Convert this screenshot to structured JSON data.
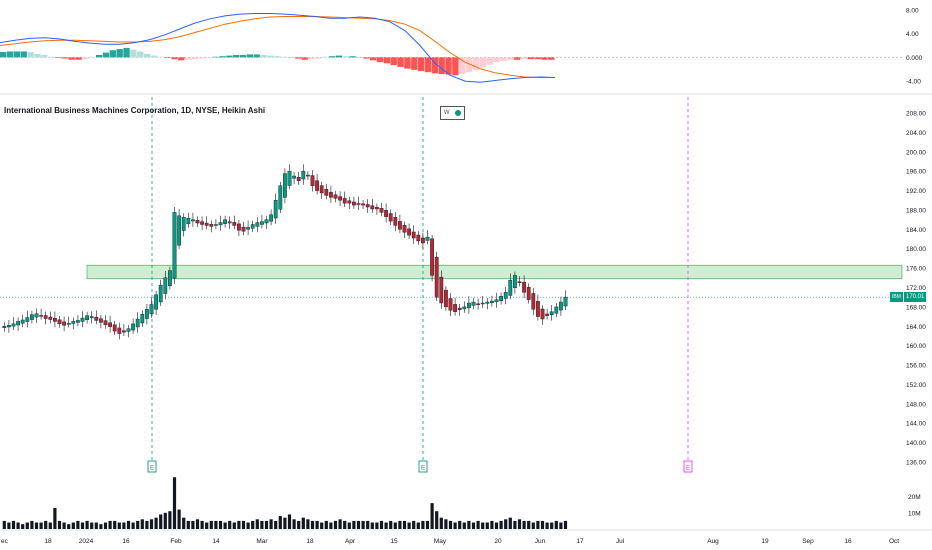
{
  "title": "International Business Machines Corporation, 1D, NYSE, Heikin Ashi",
  "badge": {
    "w": "W"
  },
  "price_tag": {
    "symbol": "IBM",
    "value": "170.01"
  },
  "colors": {
    "up": "#089981",
    "down": "#b22833",
    "zone": "#6fcf7f",
    "earn_past": "#089981",
    "earn_future": "#e040fb",
    "macd": "#2962ff",
    "signal": "#ff6d00"
  },
  "chart_data": [
    {
      "type": "heikin-ashi",
      "title": "International Business Machines Corporation, 1D, NYSE, Heikin Ashi",
      "ylim": [
        136,
        208
      ],
      "y_ticks": [
        "208.00",
        "204.00",
        "200.00",
        "196.00",
        "192.00",
        "188.00",
        "184.00",
        "180.00",
        "176.00",
        "172.00",
        "168.00",
        "164.00",
        "160.00",
        "156.00",
        "152.00",
        "148.00",
        "144.00",
        "140.00",
        "136.00"
      ],
      "x_ticks": [
        "ec",
        "18",
        "2024",
        "16",
        "Feb",
        "14",
        "Mar",
        "18",
        "Apr",
        "15",
        "May",
        "20",
        "Jun",
        "17",
        "Jul",
        "Aug",
        "19",
        "Sep",
        "16",
        "Oct"
      ],
      "last_price": 170.01,
      "price_line": 170.0,
      "zone": {
        "from": 173.8,
        "to": 176.6
      },
      "earnings_markers": [
        {
          "label": "E",
          "date": "2024-01-24",
          "status": "past"
        },
        {
          "label": "E",
          "date": "2024-04-24",
          "status": "past"
        },
        {
          "label": "E",
          "date": "2024-07-24",
          "status": "upcoming"
        }
      ],
      "closes": [
        164.0,
        164.2,
        164.5,
        165.0,
        165.3,
        165.8,
        166.4,
        166.6,
        166.2,
        165.6,
        165.4,
        165.0,
        164.5,
        164.2,
        164.6,
        165.0,
        165.2,
        165.7,
        166.2,
        166.0,
        165.2,
        164.8,
        164.3,
        163.9,
        163.0,
        162.5,
        162.8,
        163.5,
        164.5,
        165.5,
        166.5,
        167.5,
        168.5,
        170.5,
        172.5,
        174.0,
        175.5,
        187.5,
        186.8,
        186.5,
        186.3,
        186.0,
        185.3,
        185.0,
        184.8,
        184.6,
        185.0,
        185.4,
        186.0,
        185.3,
        184.8,
        183.8,
        183.6,
        184.4,
        185.0,
        185.4,
        185.6,
        186.0,
        187.0,
        190.0,
        193.0,
        195.5,
        196.0,
        195.0,
        194.0,
        196.0,
        195.0,
        193.0,
        192.0,
        191.5,
        191.0,
        190.6,
        190.4,
        190.0,
        189.4,
        189.4,
        189.0,
        189.2,
        189.0,
        188.6,
        188.2,
        188.2,
        187.5,
        186.6,
        185.7,
        184.8,
        184.0,
        183.4,
        182.8,
        182.2,
        181.6,
        181.2,
        182.4,
        174.5,
        170.0,
        168.8,
        168.0,
        167.3,
        167.0,
        167.4,
        168.0,
        168.8,
        169.0,
        168.6,
        168.8,
        169.0,
        169.2,
        169.5,
        170.2,
        171.0,
        173.5,
        174.5,
        173.0,
        171.0,
        169.5,
        167.5,
        166.0,
        165.5,
        166.2,
        167.0,
        168.0,
        169.0,
        170.01
      ],
      "volume_ticks": [
        "20M",
        "10M"
      ],
      "volume_millions": [
        5,
        4,
        5,
        4,
        3,
        4,
        5,
        4,
        4,
        5,
        4,
        13,
        5,
        4,
        3,
        4,
        5,
        4,
        5,
        4,
        4,
        3,
        4,
        5,
        5,
        4,
        4,
        5,
        4,
        5,
        6,
        5,
        6,
        7,
        9,
        10,
        11,
        32,
        12,
        7,
        5,
        5,
        6,
        5,
        4,
        5,
        5,
        5,
        4,
        5,
        4,
        5,
        5,
        4,
        5,
        6,
        5,
        5,
        6,
        5,
        8,
        7,
        9,
        6,
        5,
        7,
        6,
        5,
        5,
        4,
        5,
        4,
        5,
        6,
        5,
        4,
        5,
        5,
        5,
        5,
        4,
        4,
        5,
        4,
        5,
        4,
        5,
        5,
        4,
        5,
        4,
        5,
        5,
        16,
        11,
        7,
        6,
        5,
        4,
        5,
        4,
        5,
        4,
        5,
        4,
        4,
        5,
        4,
        5,
        6,
        7,
        5,
        6,
        5,
        5,
        4,
        5,
        5,
        4,
        4,
        5,
        4,
        5
      ]
    },
    {
      "type": "line",
      "name": "MACD",
      "ylim": [
        -5.5,
        9
      ],
      "y_ticks": [
        "8.00",
        "4.00",
        "0.000",
        "-4.00"
      ],
      "macd": [
        2.5,
        2.9,
        3.2,
        3.3,
        3.1,
        2.7,
        2.4,
        2.2,
        2.2,
        2.5,
        3.0,
        3.8,
        4.8,
        5.8,
        6.5,
        7.0,
        7.3,
        7.4,
        7.4,
        7.3,
        7.1,
        6.9,
        6.6,
        6.6,
        6.8,
        6.6,
        6.0,
        4.5,
        2.0,
        -1.0,
        -3.0,
        -4.0,
        -4.2,
        -3.9,
        -3.6,
        -3.4,
        -3.3,
        -3.4
      ],
      "signal": [
        2.0,
        2.3,
        2.6,
        2.8,
        2.9,
        2.9,
        2.8,
        2.7,
        2.6,
        2.6,
        2.7,
        3.0,
        3.5,
        4.2,
        4.9,
        5.6,
        6.1,
        6.5,
        6.8,
        6.9,
        6.9,
        6.9,
        6.8,
        6.7,
        6.6,
        6.5,
        6.2,
        5.6,
        4.5,
        2.7,
        0.8,
        -0.8,
        -1.9,
        -2.6,
        -3.0,
        -3.3,
        -3.4,
        -3.4
      ],
      "histogram": [
        0.9,
        1.0,
        1.0,
        1.0,
        0.9,
        0.6,
        0.4,
        0.1,
        -0.1,
        -0.2,
        -0.4,
        -0.4,
        -0.3,
        0.1,
        0.4,
        0.8,
        1.2,
        1.4,
        1.6,
        1.3,
        1.0,
        0.6,
        0.3,
        0.1,
        -0.1,
        -0.3,
        -0.5,
        -0.4,
        -0.3,
        -0.2,
        -0.1,
        0.1,
        0.2,
        0.3,
        0.4,
        0.4,
        0.5,
        0.5,
        0.4,
        0.3,
        0.2,
        0.1,
        0.0,
        -0.2,
        -0.4,
        -0.3,
        -0.2,
        0.1,
        0.2,
        0.3,
        0.2,
        0.2,
        0.0,
        -0.2,
        -0.5,
        -0.8,
        -1.0,
        -1.3,
        -1.6,
        -1.9,
        -2.1,
        -2.3,
        -2.5,
        -2.7,
        -2.8,
        -2.9,
        -3.0,
        -2.8,
        -2.5,
        -2.1,
        -1.7,
        -1.2,
        -0.8,
        -0.6,
        -0.4,
        -0.4,
        -0.3,
        -0.3,
        -0.3,
        -0.4,
        -0.4
      ]
    }
  ]
}
